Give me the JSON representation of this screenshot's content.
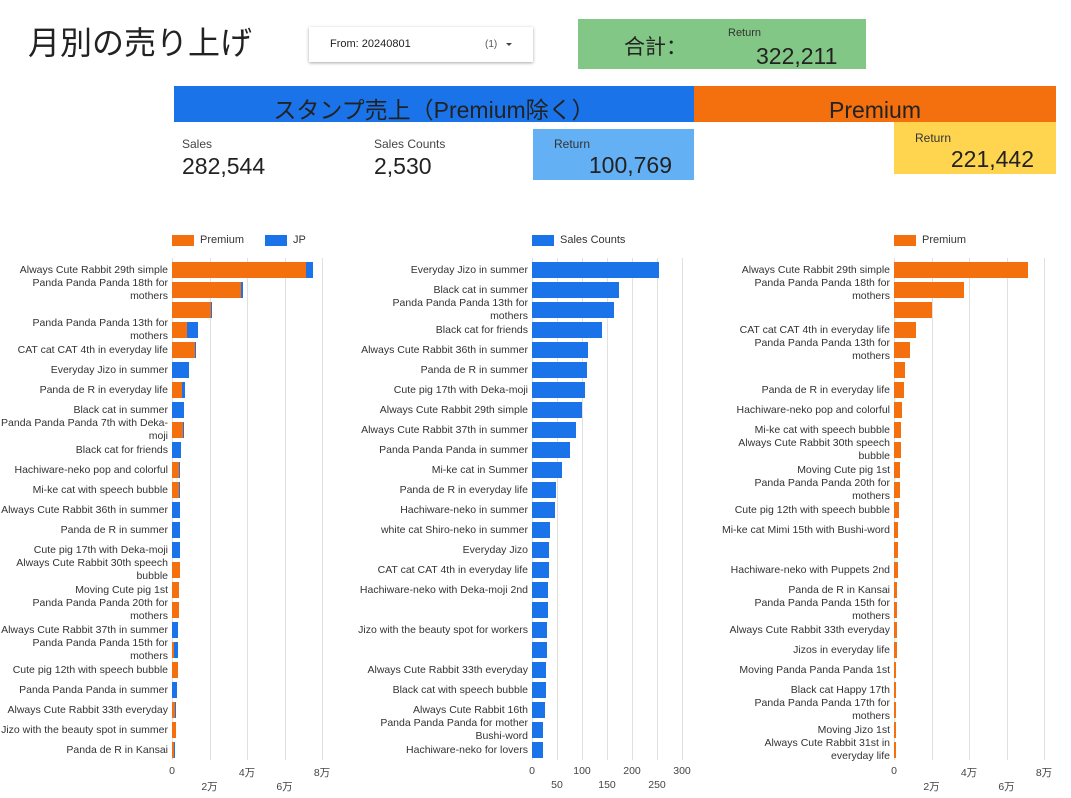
{
  "header": {
    "title": "月別の売り上げ",
    "filter": {
      "label": "From: 20240801",
      "count": "(1)"
    },
    "total": {
      "label": "合計：",
      "sublabel": "Return",
      "value": "322,211"
    }
  },
  "banners": {
    "standard": "スタンプ売上（Premium除く）",
    "premium": "Premium"
  },
  "kpis": {
    "sales": {
      "label": "Sales",
      "value": "282,544"
    },
    "counts": {
      "label": "Sales Counts",
      "value": "2,530"
    },
    "return_standard": {
      "label": "Return",
      "value": "100,769"
    },
    "return_premium": {
      "label": "Return",
      "value": "221,442"
    }
  },
  "chart_data": [
    {
      "type": "bar",
      "orientation": "horizontal",
      "stacked": true,
      "categories": [
        "Always Cute Rabbit 29th simple",
        "Panda Panda Panda 18th for mothers",
        null,
        "Panda Panda Panda 13th for mothers",
        "CAT cat CAT 4th in everyday life",
        "Everyday Jizo in summer",
        "Panda de R in everyday life",
        "Black cat in summer",
        "Panda Panda Panda 7th with Deka-moji",
        "Black cat for friends",
        "Hachiware-neko pop and colorful",
        "Mi-ke cat with speech bubble",
        "Always Cute Rabbit 36th in summer",
        "Panda de R in summer",
        "Cute pig 17th with Deka-moji",
        "Always Cute Rabbit 30th speech bubble",
        "Moving Cute pig 1st",
        "Panda Panda Panda 20th for mothers",
        "Always Cute Rabbit 37th in summer",
        "Panda Panda Panda 15th for mothers",
        "Cute pig 12th with speech bubble",
        "Panda Panda Panda in summer",
        "Always Cute Rabbit 33th everyday",
        "Jizo with the beauty spot in summer",
        "Panda de R in Kansai"
      ],
      "series": [
        {
          "name": "Premium",
          "color": "#f4700e",
          "values": [
            71400,
            37000,
            21000,
            8000,
            12000,
            0,
            5500,
            0,
            6000,
            0,
            3500,
            3500,
            0,
            0,
            0,
            4000,
            3500,
            3500,
            0,
            1000,
            3000,
            0,
            1500,
            2000,
            1000
          ]
        },
        {
          "name": "JP",
          "color": "#1a73e8",
          "values": [
            4000,
            1000,
            500,
            6000,
            1000,
            9000,
            1500,
            6500,
            500,
            5000,
            1000,
            1000,
            4500,
            4000,
            4000,
            0,
            0,
            0,
            3000,
            2000,
            0,
            2500,
            500,
            0,
            500
          ]
        }
      ],
      "xlim": [
        0,
        80000
      ],
      "xticks": [
        0,
        {
          "value": 20000,
          "label": "2万"
        },
        {
          "value": 40000,
          "label": "4万"
        },
        {
          "value": 60000,
          "label": "6万"
        },
        {
          "value": 80000,
          "label": "8万"
        }
      ],
      "grid": true
    },
    {
      "type": "bar",
      "orientation": "horizontal",
      "stacked": false,
      "categories": [
        "Everyday Jizo in summer",
        "Black cat in summer",
        "Panda Panda Panda 13th for mothers",
        "Black cat for friends",
        "Always Cute Rabbit 36th in summer",
        "Panda de R in summer",
        "Cute pig 17th with Deka-moji",
        "Always Cute Rabbit 29th simple",
        "Always Cute Rabbit 37th in summer",
        "Panda Panda Panda in summer",
        "Mi-ke cat in Summer",
        "Panda de R in everyday life",
        "Hachiware-neko in summer",
        "white cat Shiro-neko in summer",
        "Everyday Jizo",
        "CAT cat CAT 4th in everyday life",
        "Hachiware-neko with Deka-moji 2nd",
        null,
        "Jizo with the beauty spot for workers",
        null,
        "Always Cute Rabbit 33th everyday",
        "Black cat with speech bubble",
        "Always Cute Rabbit 16th",
        "Panda Panda Panda for mother Bushi-word",
        "Hachiware-neko for lovers"
      ],
      "series": [
        {
          "name": "Sales Counts",
          "color": "#1a73e8",
          "values": [
            254,
            174,
            164,
            140,
            112,
            110,
            106,
            100,
            88,
            76,
            60,
            48,
            46,
            36,
            34,
            34,
            32,
            32,
            30,
            30,
            28,
            28,
            26,
            22,
            22
          ]
        }
      ],
      "xlim": [
        0,
        300
      ],
      "xticks": [
        0,
        50,
        100,
        150,
        200,
        250,
        300
      ],
      "grid": true
    },
    {
      "type": "bar",
      "orientation": "horizontal",
      "stacked": false,
      "categories": [
        "Always Cute Rabbit 29th simple",
        "Panda Panda Panda 18th for mothers",
        null,
        "CAT cat CAT 4th in everyday life",
        "Panda Panda Panda 13th for mothers",
        null,
        "Panda de R in everyday life",
        "Hachiware-neko pop and colorful",
        "Mi-ke cat with speech bubble",
        "Always Cute Rabbit 30th speech bubble",
        "Moving Cute pig 1st",
        "Panda Panda Panda 20th for mothers",
        "Cute pig 12th with speech bubble",
        "Mi-ke cat Mimi 15th with Bushi-word",
        null,
        "Hachiware-neko with Puppets 2nd",
        "Panda de R in Kansai",
        "Panda Panda Panda 15th for mothers",
        "Always Cute Rabbit 33th everyday",
        "Jizos in everyday life",
        "Moving Panda Panda Panda 1st",
        "Black cat Happy 17th",
        "Panda Panda Panda 17th for mothers",
        "Moving Jizo 1st",
        "Always Cute Rabbit 31st in everyday life"
      ],
      "series": [
        {
          "name": "Premium",
          "color": "#f4700e",
          "values": [
            71500,
            37300,
            20300,
            11700,
            8500,
            5900,
            5300,
            4300,
            3700,
            3700,
            3200,
            3200,
            2700,
            2100,
            2100,
            2000,
            1600,
            1500,
            1500,
            1400,
            1300,
            1100,
            1000,
            900,
            800
          ]
        }
      ],
      "xlim": [
        0,
        80000
      ],
      "xticks": [
        0,
        {
          "value": 20000,
          "label": "2万"
        },
        {
          "value": 40000,
          "label": "4万"
        },
        {
          "value": 60000,
          "label": "6万"
        },
        {
          "value": 80000,
          "label": "8万"
        }
      ],
      "grid": true
    }
  ]
}
